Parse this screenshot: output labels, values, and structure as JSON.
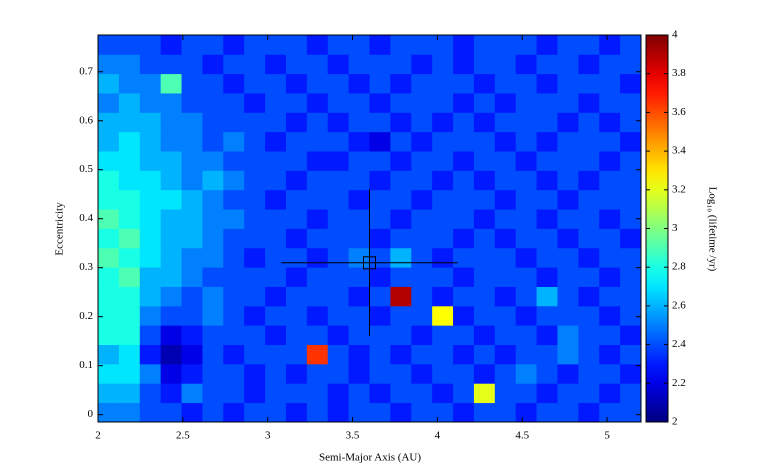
{
  "chart_data": {
    "type": "heatmap",
    "colormap": "jet",
    "xlabel": "Semi-Major Axis (AU)",
    "ylabel": "Eccentricity",
    "xlim": [
      2,
      5.2
    ],
    "ylim": [
      -0.015,
      0.775
    ],
    "xticks": [
      2,
      2.5,
      3,
      3.5,
      4,
      4.5,
      5
    ],
    "yticks": [
      0,
      0.1,
      0.2,
      0.3,
      0.4,
      0.5,
      0.6,
      0.7
    ],
    "z": [
      [
        2.5,
        2.5,
        2.4,
        2.4,
        2.3,
        2.4,
        2.3,
        2.4,
        2.4,
        2.3,
        2.4,
        2.3,
        2.4,
        2.4,
        2.3,
        2.4,
        2.4,
        2.3,
        2.4,
        2.4,
        2.3,
        2.4,
        2.4,
        2.3,
        2.4,
        2.4
      ],
      [
        2.6,
        2.6,
        2.4,
        2.3,
        2.5,
        2.4,
        2.4,
        2.3,
        2.4,
        2.4,
        2.4,
        2.3,
        2.4,
        2.3,
        2.4,
        2.4,
        2.3,
        2.4,
        3.2,
        2.4,
        2.4,
        2.3,
        2.4,
        2.4,
        2.3,
        2.4
      ],
      [
        2.7,
        2.7,
        2.5,
        2.2,
        2.3,
        2.4,
        2.4,
        2.3,
        2.4,
        2.3,
        2.4,
        2.4,
        2.3,
        2.4,
        2.4,
        2.3,
        2.4,
        2.4,
        2.3,
        2.4,
        2.5,
        2.4,
        2.3,
        2.4,
        2.4,
        2.3
      ],
      [
        2.6,
        2.7,
        2.3,
        2.1,
        2.2,
        2.4,
        2.3,
        2.4,
        2.4,
        2.4,
        3.65,
        2.4,
        2.3,
        2.4,
        2.3,
        2.4,
        2.4,
        2.3,
        2.4,
        2.3,
        2.4,
        2.4,
        2.5,
        2.4,
        2.3,
        2.4
      ],
      [
        2.8,
        2.8,
        2.4,
        2.2,
        2.3,
        2.4,
        2.4,
        2.4,
        2.3,
        2.4,
        2.4,
        2.3,
        2.4,
        2.4,
        2.4,
        2.3,
        2.4,
        2.4,
        2.3,
        2.4,
        2.4,
        2.3,
        2.5,
        2.4,
        2.4,
        2.3
      ],
      [
        2.8,
        2.8,
        2.5,
        2.4,
        2.4,
        2.5,
        2.4,
        2.3,
        2.4,
        2.4,
        2.3,
        2.4,
        2.4,
        2.3,
        2.4,
        2.4,
        3.25,
        2.3,
        2.4,
        2.4,
        2.3,
        2.4,
        2.4,
        2.4,
        2.3,
        2.4
      ],
      [
        2.8,
        2.8,
        2.6,
        2.5,
        2.4,
        2.5,
        2.4,
        2.4,
        2.3,
        2.4,
        2.4,
        2.4,
        2.3,
        2.4,
        3.9,
        2.4,
        2.3,
        2.4,
        2.4,
        2.3,
        2.4,
        2.6,
        2.4,
        2.3,
        2.4,
        2.4
      ],
      [
        2.8,
        2.9,
        2.6,
        2.6,
        2.5,
        2.4,
        2.4,
        2.4,
        2.4,
        2.3,
        2.4,
        2.4,
        2.4,
        2.3,
        2.4,
        2.4,
        2.4,
        2.3,
        2.4,
        2.4,
        2.4,
        2.3,
        2.4,
        2.4,
        2.3,
        2.4
      ],
      [
        2.9,
        2.8,
        2.7,
        2.6,
        2.5,
        2.5,
        2.4,
        2.3,
        2.4,
        2.4,
        2.3,
        2.4,
        2.5,
        2.4,
        2.6,
        2.4,
        2.3,
        2.4,
        2.4,
        2.4,
        2.3,
        2.4,
        2.4,
        2.3,
        2.4,
        2.4
      ],
      [
        2.8,
        2.9,
        2.7,
        2.6,
        2.6,
        2.5,
        2.4,
        2.4,
        2.4,
        2.3,
        2.4,
        2.4,
        2.4,
        2.3,
        2.4,
        2.4,
        2.4,
        2.3,
        2.4,
        2.3,
        2.4,
        2.4,
        2.3,
        2.4,
        2.4,
        2.3
      ],
      [
        2.9,
        2.8,
        2.7,
        2.6,
        2.6,
        2.5,
        2.5,
        2.4,
        2.4,
        2.4,
        2.3,
        2.4,
        2.4,
        2.4,
        2.3,
        2.4,
        2.4,
        2.4,
        2.3,
        2.4,
        2.4,
        2.3,
        2.4,
        2.4,
        2.3,
        2.4
      ],
      [
        2.8,
        2.8,
        2.7,
        2.7,
        2.6,
        2.5,
        2.4,
        2.4,
        2.3,
        2.4,
        2.4,
        2.4,
        2.3,
        2.4,
        2.4,
        2.3,
        2.4,
        2.4,
        2.4,
        2.3,
        2.4,
        2.4,
        2.3,
        2.4,
        2.4,
        2.4
      ],
      [
        2.8,
        2.7,
        2.7,
        2.6,
        2.5,
        2.6,
        2.5,
        2.4,
        2.4,
        2.3,
        2.4,
        2.4,
        2.4,
        2.3,
        2.4,
        2.4,
        2.3,
        2.4,
        2.3,
        2.4,
        2.4,
        2.3,
        2.4,
        2.3,
        2.4,
        2.4
      ],
      [
        2.7,
        2.7,
        2.6,
        2.6,
        2.5,
        2.5,
        2.4,
        2.4,
        2.4,
        2.4,
        2.3,
        2.3,
        2.4,
        2.4,
        2.3,
        2.4,
        2.4,
        2.3,
        2.4,
        2.4,
        2.3,
        2.4,
        2.4,
        2.4,
        2.3,
        2.4
      ],
      [
        2.6,
        2.7,
        2.6,
        2.5,
        2.5,
        2.4,
        2.5,
        2.4,
        2.3,
        2.4,
        2.4,
        2.4,
        2.3,
        2.2,
        2.4,
        2.3,
        2.4,
        2.4,
        2.4,
        2.3,
        2.4,
        2.3,
        2.4,
        2.4,
        2.4,
        2.3
      ],
      [
        2.6,
        2.6,
        2.6,
        2.5,
        2.5,
        2.4,
        2.4,
        2.4,
        2.4,
        2.3,
        2.4,
        2.3,
        2.4,
        2.4,
        2.3,
        2.4,
        2.3,
        2.4,
        2.3,
        2.4,
        2.4,
        2.4,
        2.3,
        2.4,
        2.3,
        2.4
      ],
      [
        2.5,
        2.6,
        2.5,
        2.5,
        2.4,
        2.4,
        2.4,
        2.3,
        2.4,
        2.4,
        2.3,
        2.4,
        2.4,
        2.3,
        2.4,
        2.4,
        2.4,
        2.3,
        2.4,
        2.3,
        2.4,
        2.4,
        2.4,
        2.3,
        2.4,
        2.4
      ],
      [
        2.6,
        2.5,
        2.5,
        2.9,
        2.4,
        2.4,
        2.3,
        2.4,
        2.4,
        2.3,
        2.4,
        2.4,
        2.3,
        2.4,
        2.3,
        2.4,
        2.4,
        2.4,
        2.3,
        2.4,
        2.4,
        2.3,
        2.4,
        2.4,
        2.4,
        2.3
      ],
      [
        2.5,
        2.5,
        2.4,
        2.4,
        2.4,
        2.3,
        2.4,
        2.4,
        2.3,
        2.4,
        2.4,
        2.3,
        2.4,
        2.4,
        2.4,
        2.3,
        2.4,
        2.3,
        2.4,
        2.4,
        2.3,
        2.4,
        2.4,
        2.3,
        2.4,
        2.4
      ],
      [
        2.4,
        2.4,
        2.4,
        2.3,
        2.4,
        2.4,
        2.3,
        2.4,
        2.4,
        2.4,
        2.3,
        2.4,
        2.4,
        2.3,
        2.4,
        2.4,
        2.4,
        2.3,
        2.4,
        2.4,
        2.4,
        2.3,
        2.4,
        2.4,
        2.3,
        2.4
      ]
    ],
    "point": {
      "x": 3.6,
      "y": 0.31,
      "xerr": 0.52,
      "yerr": 0.15
    },
    "colorbar": {
      "label": "Log₁₀ (lifetime /yr)",
      "lim": [
        2,
        4
      ],
      "ticks": [
        2,
        2.2,
        2.4,
        2.6,
        2.8,
        3,
        3.2,
        3.4,
        3.6,
        3.8,
        4
      ]
    }
  }
}
